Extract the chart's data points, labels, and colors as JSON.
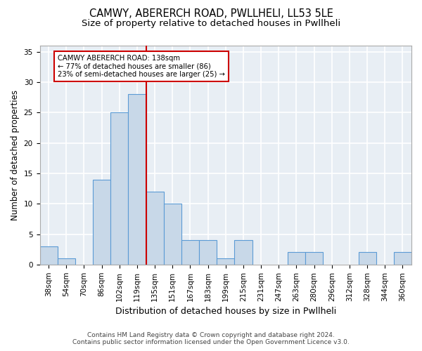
{
  "title1": "CAMWY, ABERERCH ROAD, PWLLHELI, LL53 5LE",
  "title2": "Size of property relative to detached houses in Pwllheli",
  "xlabel": "Distribution of detached houses by size in Pwllheli",
  "ylabel": "Number of detached properties",
  "categories": [
    "38sqm",
    "54sqm",
    "70sqm",
    "86sqm",
    "102sqm",
    "119sqm",
    "135sqm",
    "151sqm",
    "167sqm",
    "183sqm",
    "199sqm",
    "215sqm",
    "231sqm",
    "247sqm",
    "263sqm",
    "280sqm",
    "296sqm",
    "312sqm",
    "328sqm",
    "344sqm",
    "360sqm"
  ],
  "values": [
    3,
    1,
    0,
    14,
    25,
    28,
    12,
    10,
    4,
    4,
    1,
    4,
    0,
    0,
    2,
    2,
    0,
    0,
    2,
    0,
    2
  ],
  "bar_color": "#c8d8e8",
  "bar_edge_color": "#5b9bd5",
  "reference_line_color": "#cc0000",
  "annotation_box_text": "CAMWY ABERERCH ROAD: 138sqm\n← 77% of detached houses are smaller (86)\n23% of semi-detached houses are larger (25) →",
  "annotation_box_color": "#cc0000",
  "annotation_box_fill": "white",
  "ylim": [
    0,
    36
  ],
  "yticks": [
    0,
    5,
    10,
    15,
    20,
    25,
    30,
    35
  ],
  "footer1": "Contains HM Land Registry data © Crown copyright and database right 2024.",
  "footer2": "Contains public sector information licensed under the Open Government Licence v3.0.",
  "background_color": "#e8eef4",
  "grid_color": "#ffffff",
  "title1_fontsize": 10.5,
  "title2_fontsize": 9.5,
  "tick_fontsize": 7.5,
  "ylabel_fontsize": 8.5,
  "xlabel_fontsize": 9.0,
  "footer_fontsize": 6.5
}
